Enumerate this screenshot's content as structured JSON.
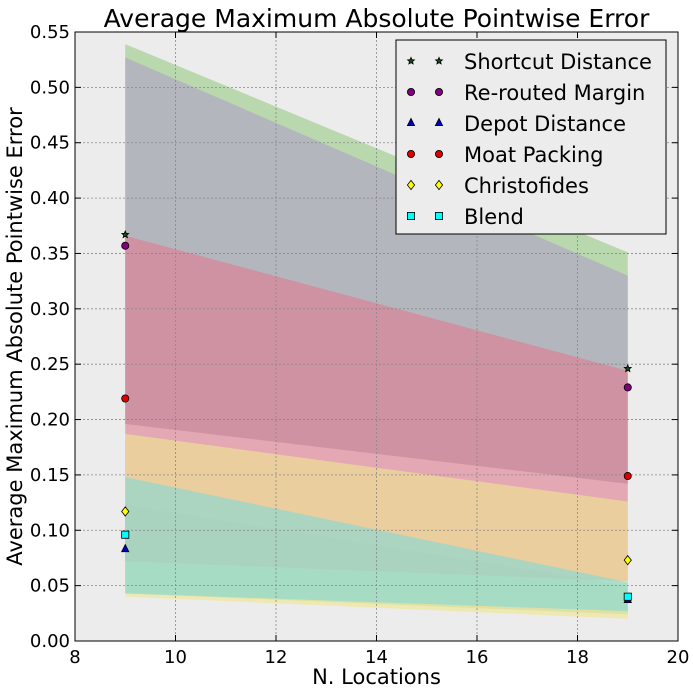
{
  "chart_data": {
    "type": "scatter",
    "title": "Average Maximum Absolute Pointwise Error",
    "xlabel": "N. Locations",
    "ylabel": "Average Maximum Absolute Pointwise Error",
    "xlim": [
      8,
      20
    ],
    "ylim": [
      0,
      0.55
    ],
    "xticks": [
      "8",
      "10",
      "12",
      "14",
      "16",
      "18",
      "20"
    ],
    "yticks": [
      "0.00",
      "0.05",
      "0.10",
      "0.15",
      "0.20",
      "0.25",
      "0.30",
      "0.35",
      "0.40",
      "0.45",
      "0.50",
      "0.55"
    ],
    "grid": true,
    "legend_position": "top-right",
    "series": [
      {
        "name": "Shortcut Distance",
        "marker": "star",
        "color": "#1a4d1a",
        "band_color": "#98cc84",
        "x": [
          9,
          19
        ],
        "y": [
          0.367,
          0.246
        ],
        "lower": [
          0.196,
          0.142
        ],
        "upper": [
          0.539,
          0.351
        ]
      },
      {
        "name": "Re-routed Margin",
        "marker": "circle",
        "color": "#800080",
        "band_color": "#b0a0c8",
        "x": [
          9,
          19
        ],
        "y": [
          0.357,
          0.229
        ],
        "lower": [
          0.196,
          0.142
        ],
        "upper": [
          0.527,
          0.33
        ]
      },
      {
        "name": "Depot Distance",
        "marker": "triangle",
        "color": "#0000cc",
        "band_color": "#a8c8a0",
        "x": [
          9,
          19
        ],
        "y": [
          0.083,
          0.037
        ],
        "lower": [
          0.043,
          0.024
        ],
        "upper": [
          0.123,
          0.05
        ]
      },
      {
        "name": "Moat Packing",
        "marker": "circle",
        "color": "#dd0000",
        "band_color": "#e07a90",
        "x": [
          9,
          19
        ],
        "y": [
          0.219,
          0.149
        ],
        "lower": [
          0.072,
          0.054
        ],
        "upper": [
          0.366,
          0.244
        ]
      },
      {
        "name": "Christofides",
        "marker": "diamond",
        "color": "#ffff00",
        "band_color": "#f0e890",
        "x": [
          9,
          19
        ],
        "y": [
          0.117,
          0.073
        ],
        "lower": [
          0.04,
          0.02
        ],
        "upper": [
          0.187,
          0.126
        ]
      },
      {
        "name": "Blend",
        "marker": "square",
        "color": "#00ffff",
        "band_color": "#80d8d8",
        "x": [
          9,
          19
        ],
        "y": [
          0.096,
          0.04
        ],
        "lower": [
          0.043,
          0.027
        ],
        "upper": [
          0.148,
          0.053
        ]
      }
    ]
  }
}
